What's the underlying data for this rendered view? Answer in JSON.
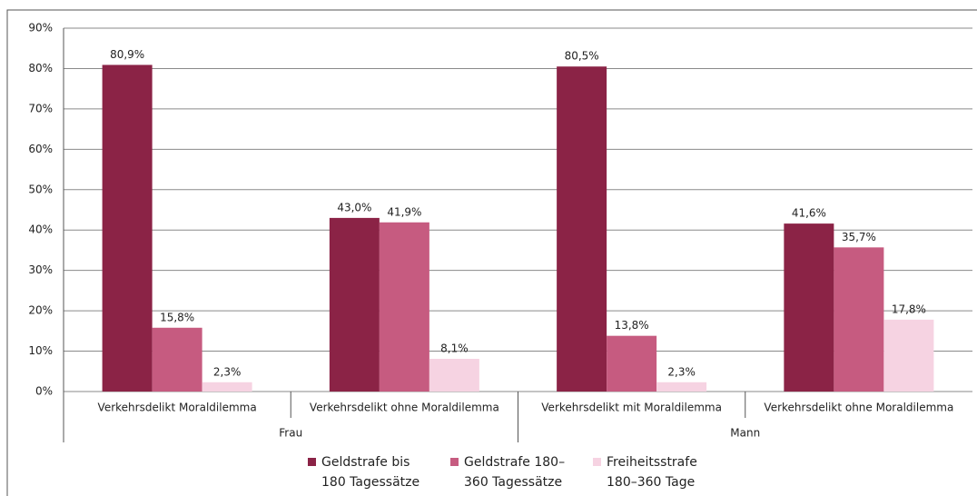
{
  "chart_data": {
    "type": "bar",
    "categories": [
      "Verkehrsdelikt Moraldilemma",
      "Verkehrsdelikt ohne Moraldilemma",
      "Verkehrsdelikt mit Moraldilemma",
      "Verkehrsdelikt ohne Moraldilemma"
    ],
    "groups": [
      "Frau",
      "Mann"
    ],
    "series": [
      {
        "name": "Geldstrafe bis 180 Tagessätze",
        "color": "#8b2346",
        "values": [
          80.9,
          43.0,
          80.5,
          41.6
        ],
        "value_labels": [
          "80,9%",
          "43,0%",
          "80,5%",
          "41,6%"
        ]
      },
      {
        "name": "Geldstrafe 180–360 Tagessätze",
        "color": "#c65b80",
        "values": [
          15.8,
          41.9,
          13.8,
          35.7
        ],
        "value_labels": [
          "15,8%",
          "41,9%",
          "13,8%",
          "35,7%"
        ]
      },
      {
        "name": "Freiheitsstrafe 180–360 Tage",
        "color": "#f6d3e2",
        "values": [
          2.3,
          8.1,
          2.3,
          17.8
        ],
        "value_labels": [
          "2,3%",
          "8,1%",
          "2,3%",
          "17,8%"
        ]
      }
    ],
    "ylim": [
      0,
      90
    ],
    "yticks": [
      {
        "value": 0,
        "label": "0%"
      },
      {
        "value": 10,
        "label": "10%"
      },
      {
        "value": 20,
        "label": "20%"
      },
      {
        "value": 30,
        "label": "30%"
      },
      {
        "value": 40,
        "label": "40%"
      },
      {
        "value": 50,
        "label": "50%"
      },
      {
        "value": 60,
        "label": "60%"
      },
      {
        "value": 70,
        "label": "70%"
      },
      {
        "value": 80,
        "label": "80%"
      },
      {
        "value": 90,
        "label": "90%"
      }
    ],
    "grid": true,
    "legend": "bottom"
  }
}
